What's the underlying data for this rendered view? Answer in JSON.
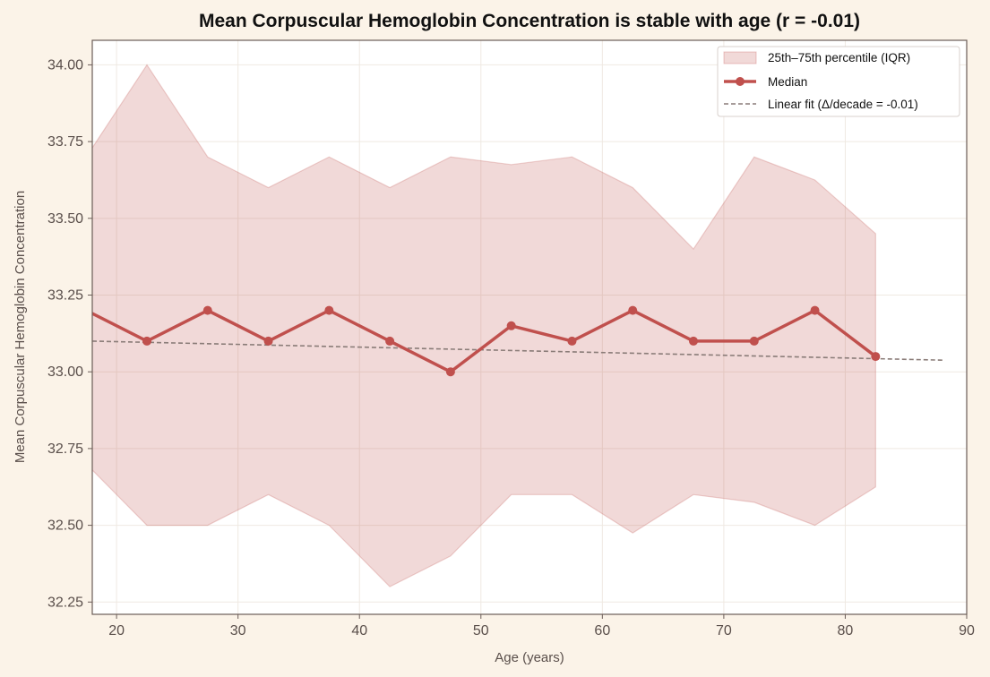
{
  "chart_data": {
    "type": "line",
    "title": "Mean Corpuscular Hemoglobin Concentration is stable with age (r = -0.01)",
    "xlabel": "Age (years)",
    "ylabel": "Mean Corpuscular Hemoglobin Concentration",
    "xlim": [
      18,
      90
    ],
    "ylim": [
      32.21,
      34.08
    ],
    "xticks": [
      20,
      30,
      40,
      50,
      60,
      70,
      80,
      90
    ],
    "yticks": [
      32.25,
      32.5,
      32.75,
      33.0,
      33.25,
      33.5,
      33.75,
      34.0
    ],
    "ytick_labels": [
      "32.25",
      "32.50",
      "32.75",
      "33.00",
      "33.25",
      "33.50",
      "33.75",
      "34.00"
    ],
    "grid": true,
    "legend_position": "top-right",
    "x": [
      17.5,
      22.5,
      27.5,
      32.5,
      37.5,
      42.5,
      47.5,
      52.5,
      57.5,
      62.5,
      67.5,
      72.5,
      77.5,
      82.5
    ],
    "series": [
      {
        "name": "25th–75th percentile (IQR)",
        "kind": "band",
        "lower": [
          32.7,
          32.5,
          32.5,
          32.6,
          32.5,
          32.3,
          32.4,
          32.6,
          32.6,
          32.475,
          32.6,
          32.575,
          32.5,
          32.625
        ],
        "upper": [
          33.7,
          34.0,
          33.7,
          33.6,
          33.7,
          33.6,
          33.7,
          33.675,
          33.7,
          33.6,
          33.4,
          33.7,
          33.625,
          33.45
        ],
        "color": "#c0504d"
      },
      {
        "name": "Median",
        "kind": "line-markers",
        "values": [
          33.2,
          33.1,
          33.2,
          33.1,
          33.2,
          33.1,
          33.0,
          33.15,
          33.1,
          33.2,
          33.1,
          33.1,
          33.2,
          33.05
        ],
        "color": "#c0504d"
      },
      {
        "name": "Linear fit (Δ/decade = -0.01)",
        "kind": "dashed-line",
        "x": [
          18,
          88
        ],
        "values": [
          33.1,
          33.038
        ],
        "color": "#8a7c78"
      }
    ]
  }
}
